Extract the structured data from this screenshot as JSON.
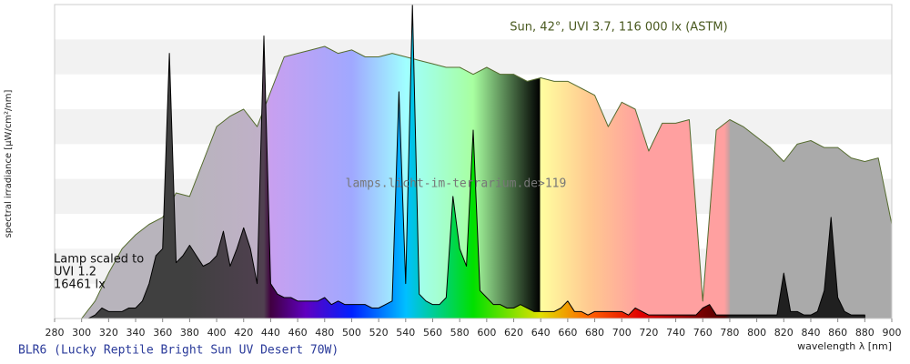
{
  "chart_data": {
    "type": "area",
    "ylabel": "spectral irradiance [µW/cm²/nm]",
    "xlabel": "wavelength λ [nm]",
    "xlim": [
      280,
      900
    ],
    "xticks": [
      280,
      300,
      320,
      340,
      360,
      380,
      400,
      420,
      440,
      460,
      480,
      500,
      520,
      540,
      560,
      580,
      600,
      620,
      640,
      660,
      680,
      700,
      720,
      740,
      760,
      780,
      800,
      820,
      840,
      860,
      880,
      900
    ],
    "ylim": [
      0,
      9
    ],
    "grid": true,
    "watermark": "lamps.licht-im-terrarium.de>119",
    "lamp_label": [
      "Lamp scaled to",
      "UVI 1.2",
      "16461 lx"
    ],
    "series": [
      {
        "name": "Sun, 42°, UVI 3.7, 116 000 lx (ASTM)",
        "color": "#556b2f",
        "x": [
          300,
          310,
          320,
          330,
          340,
          350,
          360,
          370,
          380,
          390,
          400,
          410,
          420,
          430,
          440,
          450,
          460,
          470,
          480,
          490,
          500,
          510,
          520,
          530,
          540,
          550,
          560,
          570,
          580,
          590,
          600,
          610,
          620,
          630,
          640,
          650,
          660,
          670,
          680,
          690,
          700,
          710,
          720,
          730,
          740,
          750,
          760,
          770,
          780,
          790,
          800,
          810,
          820,
          830,
          840,
          850,
          860,
          870,
          880,
          890,
          900
        ],
        "values": [
          0,
          0.5,
          1.3,
          2.0,
          2.4,
          2.7,
          2.9,
          3.6,
          3.5,
          4.5,
          5.5,
          5.8,
          6.0,
          5.5,
          6.5,
          7.5,
          7.6,
          7.7,
          7.8,
          7.6,
          7.7,
          7.5,
          7.5,
          7.6,
          7.5,
          7.4,
          7.3,
          7.2,
          7.2,
          7.0,
          7.2,
          7.0,
          7.0,
          6.8,
          6.9,
          6.8,
          6.8,
          6.6,
          6.4,
          5.5,
          6.2,
          6.0,
          4.8,
          5.6,
          5.6,
          5.7,
          0.5,
          5.4,
          5.7,
          5.5,
          5.2,
          4.9,
          4.5,
          5.0,
          5.1,
          4.9,
          4.9,
          4.6,
          4.5,
          4.6,
          2.7
        ]
      },
      {
        "name": "BLR6 (Lucky Reptile Bright Sun UV Desert 70W)",
        "color": "#000000",
        "x": [
          300,
          305,
          310,
          315,
          320,
          325,
          330,
          335,
          340,
          345,
          350,
          355,
          360,
          365,
          370,
          375,
          380,
          385,
          390,
          395,
          400,
          405,
          410,
          415,
          420,
          425,
          430,
          435,
          440,
          445,
          450,
          455,
          460,
          465,
          470,
          475,
          480,
          485,
          490,
          495,
          500,
          505,
          510,
          515,
          520,
          525,
          530,
          535,
          540,
          545,
          550,
          555,
          560,
          565,
          570,
          575,
          580,
          585,
          590,
          595,
          600,
          605,
          610,
          615,
          620,
          625,
          630,
          635,
          640,
          645,
          650,
          655,
          660,
          665,
          670,
          675,
          680,
          685,
          690,
          695,
          700,
          705,
          710,
          715,
          720,
          725,
          730,
          735,
          740,
          745,
          750,
          755,
          760,
          765,
          770,
          775,
          780,
          785,
          790,
          795,
          800,
          805,
          810,
          815,
          820,
          825,
          830,
          835,
          840,
          845,
          850,
          855,
          860,
          865,
          870,
          875,
          880
        ],
        "values": [
          0,
          0,
          0.1,
          0.3,
          0.2,
          0.2,
          0.2,
          0.3,
          0.3,
          0.5,
          1.0,
          1.8,
          2.0,
          7.6,
          1.6,
          1.8,
          2.1,
          1.8,
          1.5,
          1.6,
          1.8,
          2.5,
          1.5,
          2.0,
          2.6,
          2.0,
          1.0,
          8.1,
          1.0,
          0.7,
          0.6,
          0.6,
          0.5,
          0.5,
          0.5,
          0.5,
          0.6,
          0.4,
          0.5,
          0.4,
          0.4,
          0.4,
          0.4,
          0.3,
          0.3,
          0.4,
          0.5,
          6.5,
          1.0,
          9.0,
          0.7,
          0.5,
          0.4,
          0.4,
          0.6,
          3.5,
          2.0,
          1.5,
          5.4,
          0.8,
          0.6,
          0.4,
          0.4,
          0.3,
          0.3,
          0.4,
          0.3,
          0.2,
          0.2,
          0.2,
          0.2,
          0.3,
          0.5,
          0.2,
          0.2,
          0.1,
          0.2,
          0.2,
          0.2,
          0.2,
          0.2,
          0.1,
          0.3,
          0.2,
          0.1,
          0.1,
          0.1,
          0.1,
          0.1,
          0.1,
          0.1,
          0.1,
          0.3,
          0.4,
          0.1,
          0.1,
          0.1,
          0.1,
          0.1,
          0.1,
          0.1,
          0.1,
          0.1,
          0.1,
          1.3,
          0.2,
          0.2,
          0.1,
          0.1,
          0.2,
          0.8,
          2.9,
          0.6,
          0.2,
          0.1,
          0.1,
          0.1
        ]
      }
    ]
  }
}
